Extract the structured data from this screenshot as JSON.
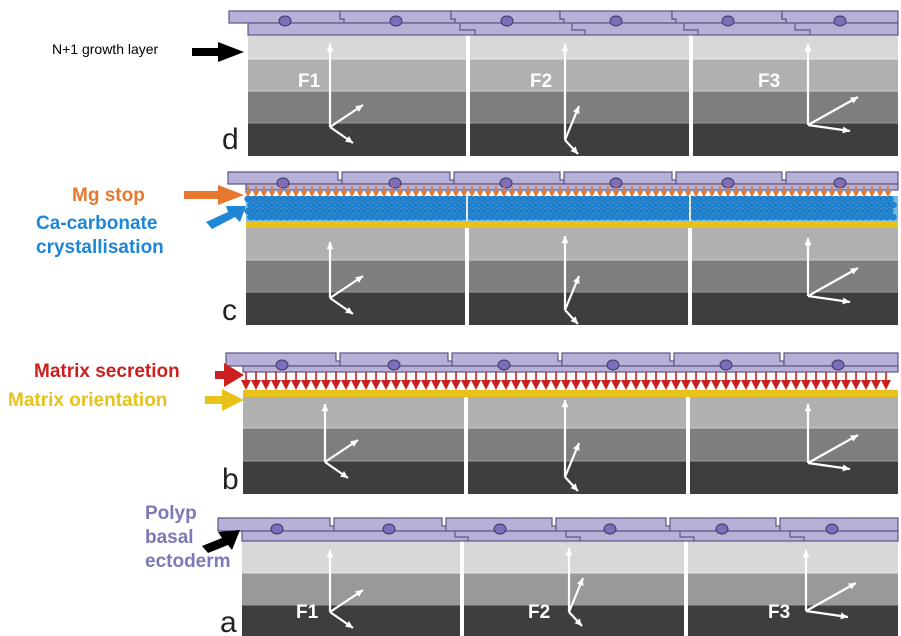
{
  "panels": [
    {
      "letter": "d",
      "fiber_labels": [
        "F1",
        "F2",
        "F3"
      ]
    },
    {
      "letter": "c",
      "fiber_labels": []
    },
    {
      "letter": "b",
      "fiber_labels": []
    },
    {
      "letter": "a",
      "fiber_labels": [
        "F1",
        "F2",
        "F3"
      ]
    }
  ],
  "labels": {
    "growth_layer": "N+1 growth layer",
    "mg_stop": "Mg stop",
    "ca_carbonate_1": "Ca-carbonate",
    "ca_carbonate_2": "crystallisation",
    "matrix_secretion": "Matrix secretion",
    "matrix_orientation": "Matrix orientation",
    "polyp_1": "Polyp",
    "polyp_2": "basal",
    "polyp_3": "ectoderm"
  },
  "colors": {
    "membrane": "#b7b1d8",
    "membrane_stroke": "#5d5787",
    "nucleus": "#7a6fb8",
    "mg_stop": "#e8782e",
    "ca_carbonate": "#1f86d6",
    "matrix_secretion": "#cc1f1f",
    "matrix_orientation": "#e8c21a",
    "polyp": "#7d78b8",
    "layer_light": "#d8d8d8",
    "layer_mid": "#b0b0b0",
    "layer_dark": "#7e7e7e",
    "layer_darkest": "#3e3e3e"
  }
}
